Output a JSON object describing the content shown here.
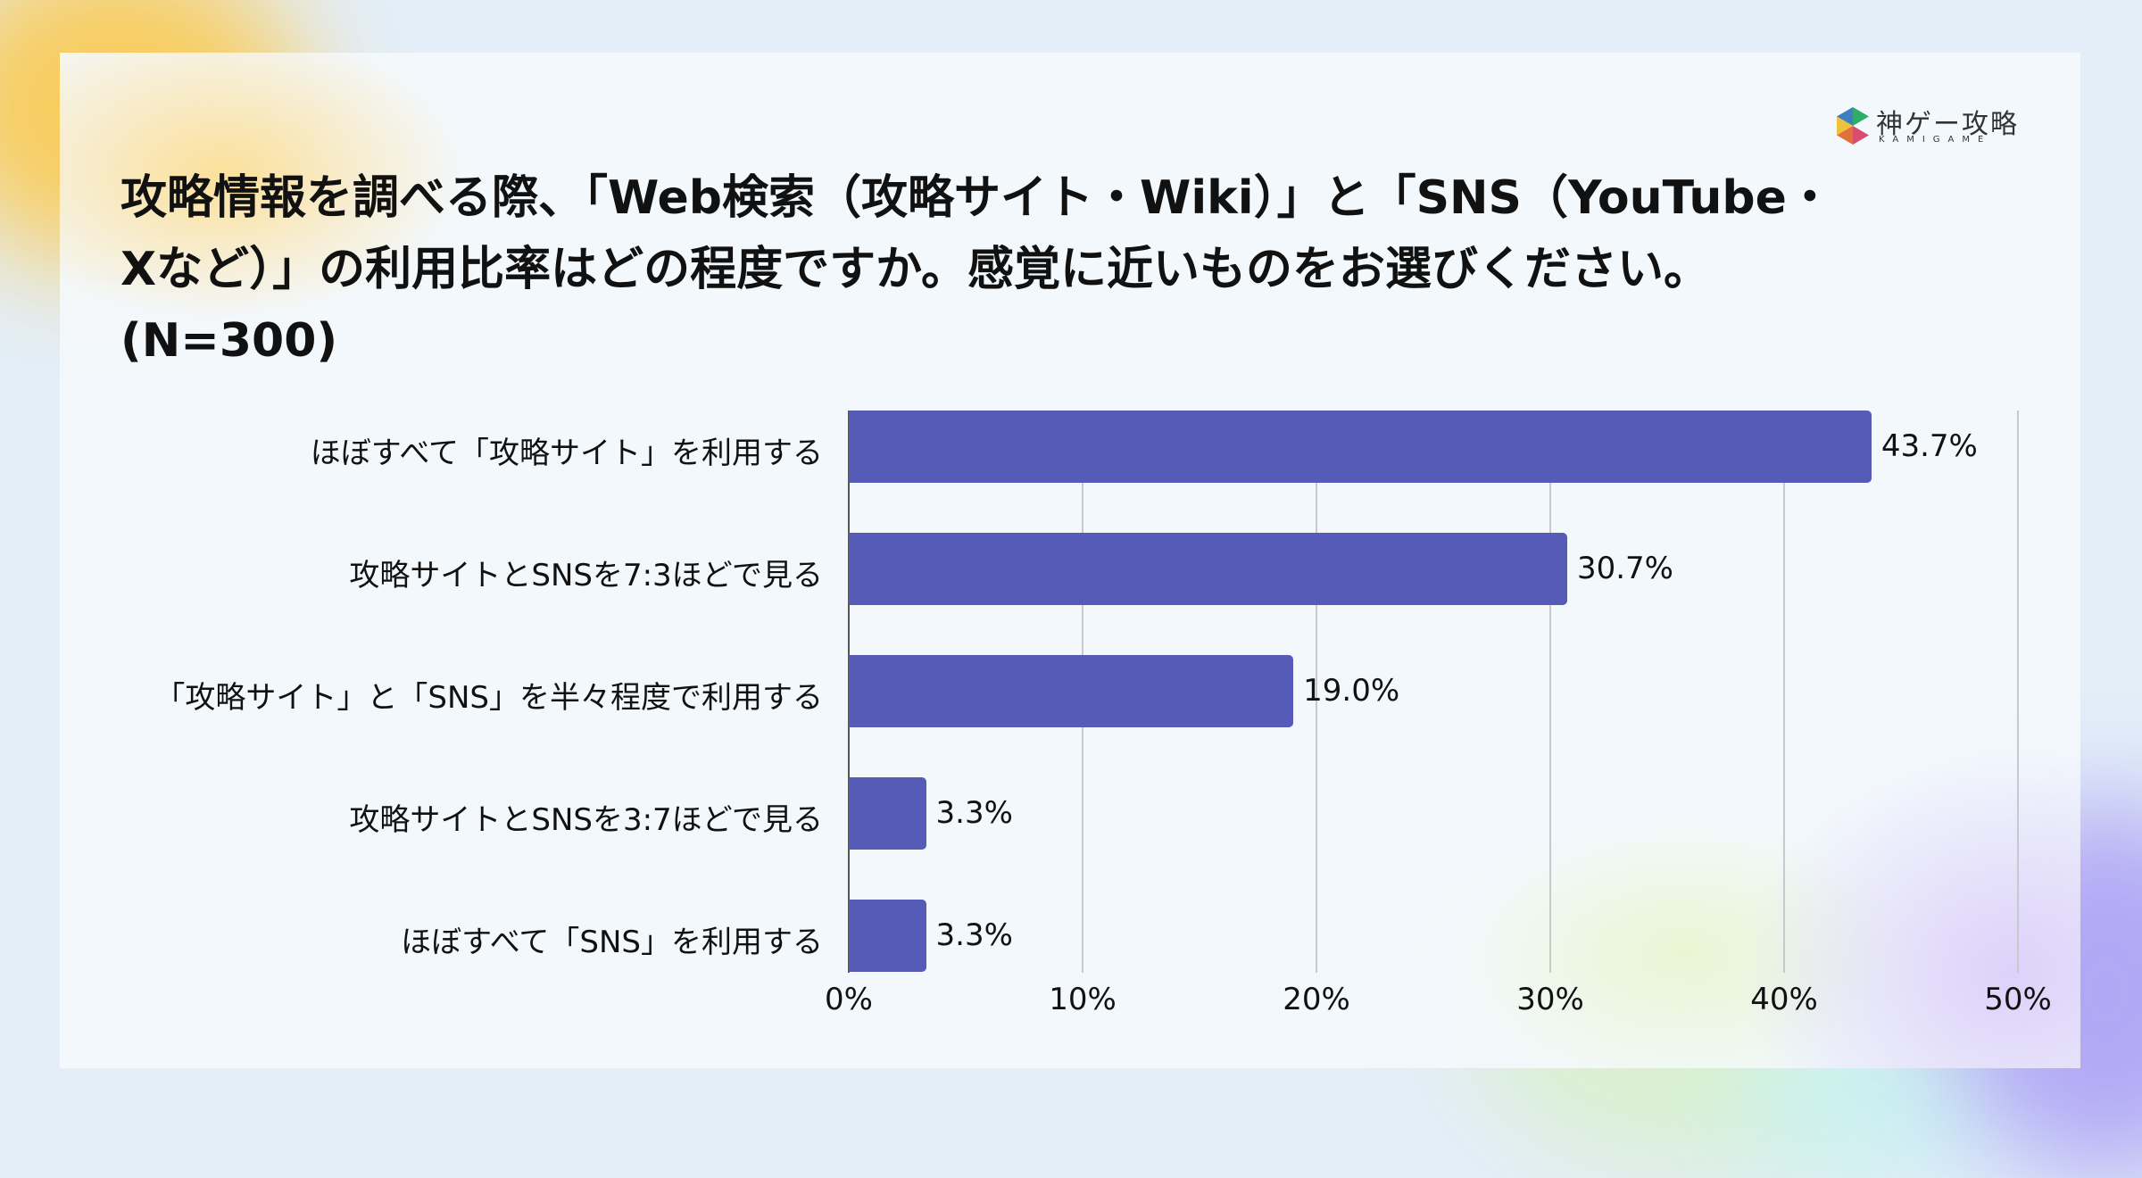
{
  "logo": {
    "name": "神ゲー攻略",
    "subtitle": "KAMIGAME",
    "colors": [
      "#3f7fc0",
      "#2fab6a",
      "#f0c23a",
      "#e1703c",
      "#d84c6e"
    ]
  },
  "title": {
    "line1": "攻略情報を調べる際、「Web検索（攻略サイト・Wiki）」と「SNS（YouTube・",
    "line2": "Xなど）」の利用比率はどの程度ですか。感覚に近いものをお選びください。",
    "line3": "(N=300)"
  },
  "chart_data": {
    "type": "bar",
    "orientation": "horizontal",
    "title": "攻略情報を調べる際、「Web検索（攻略サイト・Wiki）」と「SNS（YouTube・Xなど）」の利用比率はどの程度ですか。感覚に近いものをお選びください。(N=300)",
    "categories": [
      "ほぼすべて「攻略サイト」を利用する",
      "攻略サイトとSNSを7:3ほどで見る",
      "「攻略サイト」と「SNS」を半々程度で利用する",
      "攻略サイトとSNSを3:7ほどで見る",
      "ほぼすべて「SNS」を利用する"
    ],
    "values": [
      43.7,
      30.7,
      19.0,
      3.3,
      3.3
    ],
    "value_labels": [
      "43.7%",
      "30.7%",
      "19.0%",
      "3.3%",
      "3.3%"
    ],
    "xlabel": "",
    "ylabel": "",
    "xlim": [
      0,
      50
    ],
    "x_ticks": [
      "0%",
      "10%",
      "20%",
      "30%",
      "40%",
      "50%"
    ],
    "grid": true,
    "legend": null,
    "bar_color": "#565bb8"
  }
}
